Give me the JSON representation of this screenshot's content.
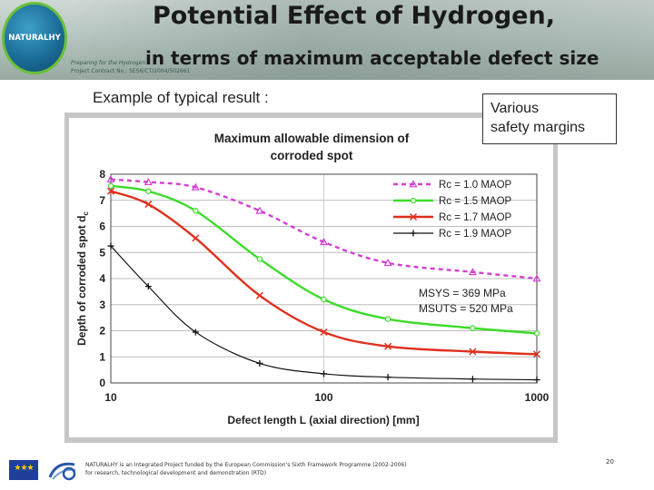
{
  "header": {
    "title_line1": "Potential Effect of Hydrogen,",
    "title_line2": "in terms of maximum acceptable defect size",
    "logo_text": "NATURALHY",
    "project_line1": "Preparing for the Hydrogen",
    "project_line2": "Project Contract No.: SES6/CT/2004/502661"
  },
  "subtitle": "Example of typical result :",
  "callout": {
    "line1": "Various",
    "line2": "safety margins"
  },
  "chart_data": {
    "type": "line",
    "title_line1": "Maximum allowable dimension of",
    "title_line2": "corroded spot",
    "xlabel": "Defect length L (axial direction) [mm]",
    "ylabel": "Depth of corroded spot d",
    "ylabel_sub": "c",
    "x_scale": "log",
    "xlim": [
      10,
      1000
    ],
    "ylim": [
      0,
      8
    ],
    "x_ticks": [
      {
        "value": 10,
        "label": "10"
      },
      {
        "value": 100,
        "label": "100"
      },
      {
        "value": 1000,
        "label": "1000"
      }
    ],
    "y_ticks": [
      {
        "value": 0,
        "label": "0"
      },
      {
        "value": 1,
        "label": "1"
      },
      {
        "value": 2,
        "label": "2"
      },
      {
        "value": 3,
        "label": "3"
      },
      {
        "value": 4,
        "label": "4"
      },
      {
        "value": 5,
        "label": "5"
      },
      {
        "value": 6,
        "label": "6"
      },
      {
        "value": 7,
        "label": "7"
      },
      {
        "value": 8,
        "label": "8"
      }
    ],
    "grid": "horizontal",
    "legend_position": "top-right",
    "annotation_line1": "MSYS  = 369 MPa",
    "annotation_line2": "MSUTS = 520 MPa",
    "series": [
      {
        "name": "Rc = 1.0 MAOP",
        "color": "#d23fd2",
        "dash": true,
        "marker": "triangle",
        "x": [
          10,
          15,
          25,
          50,
          100,
          200,
          500,
          1000
        ],
        "y": [
          7.8,
          7.7,
          7.5,
          6.6,
          5.4,
          4.6,
          4.25,
          4.0
        ]
      },
      {
        "name": "Rc = 1.5 MAOP",
        "color": "#3ddc2a",
        "dash": false,
        "marker": "circle",
        "x": [
          10,
          15,
          25,
          50,
          100,
          200,
          500,
          1000
        ],
        "y": [
          7.55,
          7.35,
          6.6,
          4.75,
          3.2,
          2.45,
          2.1,
          1.9
        ]
      },
      {
        "name": "Rc = 1.7 MAOP",
        "color": "#e0301e",
        "dash": false,
        "marker": "x",
        "x": [
          10,
          15,
          25,
          50,
          100,
          200,
          500,
          1000
        ],
        "y": [
          7.35,
          6.85,
          5.55,
          3.35,
          1.95,
          1.4,
          1.2,
          1.1
        ]
      },
      {
        "name": "Rc = 1.9 MAOP",
        "color": "#111111",
        "dash": false,
        "marker": "plus",
        "x": [
          10,
          15,
          25,
          50,
          100,
          200,
          500,
          1000
        ],
        "y": [
          5.25,
          3.7,
          1.95,
          0.75,
          0.35,
          0.22,
          0.15,
          0.12
        ]
      }
    ]
  },
  "footer": {
    "line1": "NATURALHY is an Integrated Project funded by the European Commission's Sixth Framework Programme (2002-2006)",
    "line2": "for research, technological development and demonstration (RTD)",
    "page_number": "20"
  }
}
